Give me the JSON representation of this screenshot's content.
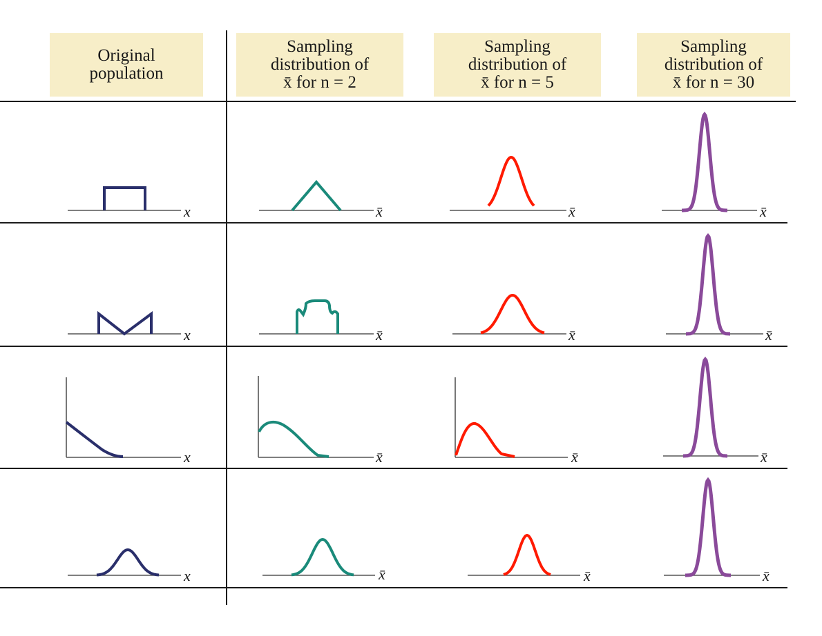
{
  "headers": [
    {
      "lines": [
        "Original",
        "population"
      ]
    },
    {
      "lines": [
        "Sampling",
        "distribution of",
        "x̄ for n = 2"
      ]
    },
    {
      "lines": [
        "Sampling",
        "distribution of",
        "x̄ for n = 5"
      ]
    },
    {
      "lines": [
        "Sampling",
        "distribution of",
        "x̄ for n = 30"
      ]
    }
  ],
  "axis_labels": [
    "x",
    "x̄",
    "x̄",
    "x̄"
  ],
  "colors": {
    "population": "#2a2f6b",
    "n2": "#1a8a7a",
    "n5": "#ff1a00",
    "n5_edge": "#f2e200",
    "n30": "#8a4a9a",
    "header_bg": "#f7eec8"
  },
  "rows": [
    {
      "population": "uniform",
      "n2": "triangular",
      "n5": "bell",
      "n30": "narrow-bell"
    },
    {
      "population": "bimodal-V",
      "n2": "plateau-bumpy",
      "n5": "bell",
      "n30": "narrow-bell"
    },
    {
      "population": "exponential-decay",
      "n2": "right-skewed",
      "n5": "right-skewed",
      "n30": "narrow-bell"
    },
    {
      "population": "bell",
      "n2": "bell",
      "n5": "bell",
      "n30": "narrow-bell"
    }
  ]
}
